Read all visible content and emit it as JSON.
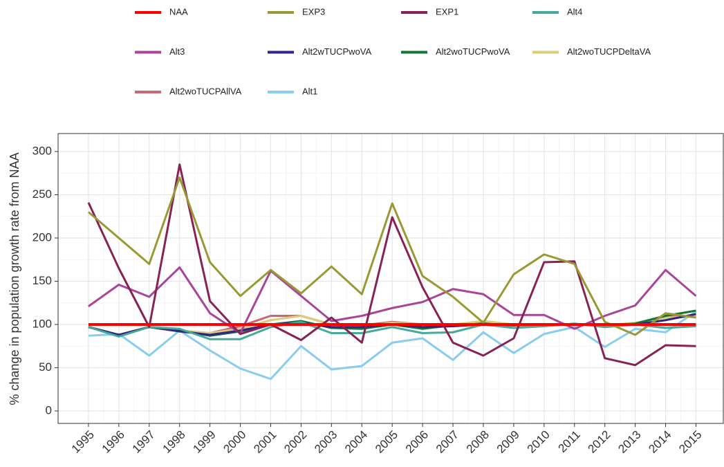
{
  "chart_data": {
    "type": "line",
    "y_label": "% change in population growth rate from NAA",
    "x": [
      1995,
      1996,
      1997,
      1998,
      1999,
      2000,
      2001,
      2002,
      2003,
      2004,
      2005,
      2006,
      2007,
      2008,
      2009,
      2010,
      2011,
      2012,
      2013,
      2014,
      2015
    ],
    "xlim": [
      1994,
      2015.9
    ],
    "xticks": [
      1995,
      1996,
      1997,
      1998,
      1999,
      2000,
      2001,
      2002,
      2003,
      2004,
      2005,
      2006,
      2007,
      2008,
      2009,
      2010,
      2011,
      2012,
      2013,
      2014,
      2015
    ],
    "ylim": [
      -14.4,
      320.8
    ],
    "yticks": [
      0,
      50,
      100,
      150,
      200,
      250,
      300
    ],
    "grid": true,
    "legend_position": "top",
    "series": [
      {
        "name": "NAA",
        "color": "#ff0000",
        "values": [
          100,
          100,
          100,
          100,
          100,
          100,
          100,
          100,
          100,
          100,
          100,
          100,
          100,
          100,
          100,
          100,
          100,
          100,
          100,
          100,
          100
        ]
      },
      {
        "name": "EXP3",
        "color": "#999933",
        "values": [
          230,
          200,
          170,
          270,
          172,
          133,
          163,
          136,
          167,
          135,
          240,
          156,
          132,
          102,
          158,
          181,
          170,
          103,
          88,
          113,
          108
        ]
      },
      {
        "name": "EXP1",
        "color": "#882255",
        "values": [
          241,
          165,
          97,
          285,
          127,
          89,
          100,
          82,
          108,
          79,
          224,
          143,
          79,
          64,
          84,
          172,
          173,
          61,
          53,
          76,
          75
        ]
      },
      {
        "name": "Alt4",
        "color": "#44aa99",
        "values": [
          97,
          86,
          97,
          95,
          83,
          83,
          97,
          103,
          90,
          90,
          97,
          90,
          91,
          100,
          96,
          98,
          101,
          97,
          100,
          96,
          98
        ]
      },
      {
        "name": "Alt3",
        "color": "#aa4499",
        "values": [
          121,
          146,
          132,
          166,
          113,
          90,
          162,
          133,
          104,
          110,
          119,
          126,
          141,
          135,
          111,
          111,
          95,
          110,
          122,
          163,
          133
        ]
      },
      {
        "name": "Alt2wTUCPwoVA",
        "color": "#332288",
        "values": [
          97,
          88,
          97,
          92,
          88,
          93,
          100,
          102,
          97,
          97,
          100,
          97,
          98,
          100,
          99,
          100,
          100,
          99,
          100,
          105,
          112
        ]
      },
      {
        "name": "Alt2woTUCPwoVA",
        "color": "#117733",
        "values": [
          97,
          87,
          97,
          93,
          87,
          92,
          100,
          104,
          96,
          95,
          100,
          95,
          99,
          101,
          99,
          100,
          100,
          99,
          101,
          110,
          116
        ]
      },
      {
        "name": "Alt2woTUCPDeltaVA",
        "color": "#ddcc77",
        "values": [
          97,
          88,
          97,
          93,
          90,
          95,
          105,
          110,
          100,
          98,
          102,
          100,
          100,
          104,
          100,
          100,
          100,
          99,
          102,
          108,
          109
        ]
      },
      {
        "name": "Alt2woTUCPAllVA",
        "color": "#cc6677",
        "values": [
          97,
          88,
          97,
          93,
          90,
          98,
          110,
          110,
          100,
          99,
          103,
          100,
          100,
          103,
          100,
          100,
          100,
          99,
          101,
          110,
          109
        ]
      },
      {
        "name": "Alt1",
        "color": "#88ccee",
        "values": [
          87,
          89,
          64,
          93,
          70,
          49,
          37,
          75,
          48,
          52,
          79,
          84,
          59,
          91,
          67,
          89,
          97,
          74,
          95,
          91,
          115
        ]
      }
    ]
  }
}
